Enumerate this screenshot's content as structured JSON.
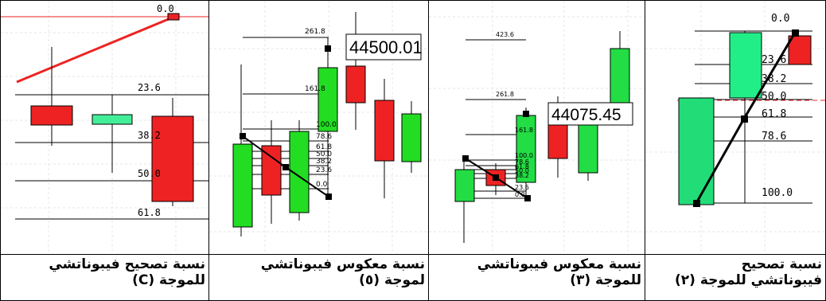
{
  "panels": [
    {
      "id": "panel-right",
      "caption_lines": [
        "نسبة تصحيح",
        "فيبوناتشي للموجة (٢)"
      ],
      "chart_data": {
        "type": "candlestick",
        "fib_levels": [
          "0.0",
          "23.6",
          "38.2",
          "50.0",
          "61.8",
          "78.6",
          "100.0"
        ],
        "colors": {
          "bull": "#22dd77",
          "bear": "#ee2222",
          "line": "#000000",
          "zero_line": "#ee2222"
        }
      }
    },
    {
      "id": "panel-3",
      "caption_lines": [
        "نسبة معكوس فيبوناتشي",
        "للموجة (٣)"
      ],
      "chart_data": {
        "type": "candlestick",
        "fib_levels": [
          "423.6",
          "261.8",
          "161.8",
          "100.0",
          "78.6",
          "61.8",
          "50.0",
          "38.2",
          "23.6",
          "0.0"
        ],
        "price_label": "44075.45",
        "colors": {
          "bull": "#22dd44",
          "bear": "#ee2222",
          "line": "#000000"
        }
      }
    },
    {
      "id": "panel-5",
      "caption_lines": [
        "نسبة معكوس فيبوناتشي",
        "لموجة (٥)"
      ],
      "chart_data": {
        "type": "candlestick",
        "fib_levels": [
          "261.8",
          "161.8",
          "100.0",
          "78.6",
          "61.8",
          "50.0",
          "38.2",
          "23.6",
          "0.0"
        ],
        "price_label": "44500.01",
        "colors": {
          "bull": "#22dd22",
          "bear": "#ee2222",
          "line": "#000000"
        }
      }
    },
    {
      "id": "panel-c",
      "caption_lines": [
        "نسبة تصحيح فيبوناتشي",
        "للموجة (C)"
      ],
      "chart_data": {
        "type": "candlestick",
        "fib_levels": [
          "0.0",
          "23.6",
          "38.2",
          "50.0",
          "61.8"
        ],
        "colors": {
          "bull": "#44ee99",
          "bear": "#ee2222",
          "trend": "#ee2222"
        }
      }
    }
  ]
}
